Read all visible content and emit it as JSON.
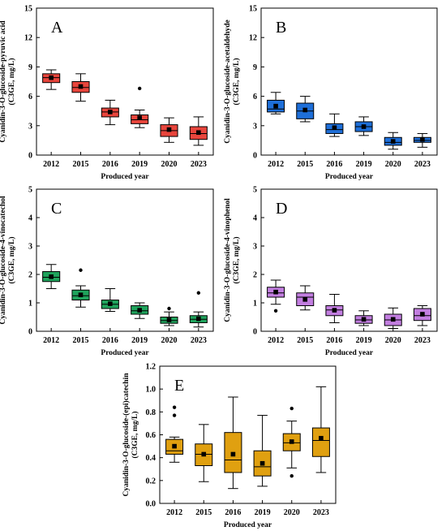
{
  "chart_data": [
    {
      "panel": "A",
      "type": "box",
      "ylabel": "Cyanidin-3-O-glucoside-pyruvic acid",
      "ylabel2": "(C3GE, mg/L)",
      "xlabel": "Produced year",
      "ylim": [
        0,
        15
      ],
      "yticks": [
        "0",
        "3",
        "6",
        "9",
        "12",
        "15"
      ],
      "ytick_values": [
        0,
        3,
        6,
        9,
        12,
        15
      ],
      "color": "#e8453c",
      "categories": [
        "2012",
        "2015",
        "2016",
        "2019",
        "2020",
        "2023"
      ],
      "boxes": [
        {
          "min": 6.7,
          "q1": 7.4,
          "median": 7.9,
          "q3": 8.3,
          "max": 8.7,
          "mean": 7.9,
          "outliers": []
        },
        {
          "min": 5.5,
          "q1": 6.4,
          "median": 6.9,
          "q3": 7.5,
          "max": 8.3,
          "mean": 7.0,
          "outliers": []
        },
        {
          "min": 3.1,
          "q1": 3.9,
          "median": 4.4,
          "q3": 4.8,
          "max": 5.6,
          "mean": 4.4,
          "outliers": []
        },
        {
          "min": 2.8,
          "q1": 3.2,
          "median": 3.6,
          "q3": 4.1,
          "max": 4.6,
          "mean": 3.8,
          "outliers": [
            6.8
          ]
        },
        {
          "min": 1.3,
          "q1": 1.9,
          "median": 2.5,
          "q3": 3.1,
          "max": 3.8,
          "mean": 2.6,
          "outliers": []
        },
        {
          "min": 1.0,
          "q1": 1.6,
          "median": 2.2,
          "q3": 2.9,
          "max": 3.9,
          "mean": 2.3,
          "outliers": []
        }
      ]
    },
    {
      "panel": "B",
      "type": "box",
      "ylabel": "Cyanidin-3-O-glucoside-acetaldehyde",
      "ylabel2": "(C3GE, mg/L)",
      "xlabel": "Produced year",
      "ylim": [
        0,
        15
      ],
      "yticks": [
        "0",
        "3",
        "6",
        "9",
        "12",
        "15"
      ],
      "ytick_values": [
        0,
        3,
        6,
        9,
        12,
        15
      ],
      "color": "#1e6fd9",
      "categories": [
        "2012",
        "2015",
        "2016",
        "2019",
        "2020",
        "2023"
      ],
      "boxes": [
        {
          "min": 4.2,
          "q1": 4.4,
          "median": 4.7,
          "q3": 5.6,
          "max": 6.4,
          "mean": 5.0,
          "outliers": []
        },
        {
          "min": 3.4,
          "q1": 3.7,
          "median": 4.5,
          "q3": 5.3,
          "max": 6.0,
          "mean": 4.6,
          "outliers": []
        },
        {
          "min": 1.9,
          "q1": 2.2,
          "median": 2.6,
          "q3": 3.2,
          "max": 4.2,
          "mean": 2.8,
          "outliers": []
        },
        {
          "min": 2.0,
          "q1": 2.4,
          "median": 2.9,
          "q3": 3.4,
          "max": 3.9,
          "mean": 2.9,
          "outliers": []
        },
        {
          "min": 0.6,
          "q1": 1.0,
          "median": 1.3,
          "q3": 1.8,
          "max": 2.3,
          "mean": 1.4,
          "outliers": []
        },
        {
          "min": 0.8,
          "q1": 1.3,
          "median": 1.5,
          "q3": 1.8,
          "max": 2.2,
          "mean": 1.6,
          "outliers": []
        }
      ]
    },
    {
      "panel": "C",
      "type": "box",
      "ylabel": "Cyanidin-3-O-glucoside-4-vinocatechol",
      "ylabel2": "(C3GE, mg/L)",
      "xlabel": "Produced year",
      "ylim": [
        0,
        5
      ],
      "yticks": [
        "0",
        "1",
        "2",
        "3",
        "4",
        "5"
      ],
      "ytick_values": [
        0,
        1,
        2,
        3,
        4,
        5
      ],
      "color": "#1fa35c",
      "categories": [
        "2012",
        "2015",
        "2016",
        "2019",
        "2020",
        "2023"
      ],
      "boxes": [
        {
          "min": 1.5,
          "q1": 1.75,
          "median": 1.9,
          "q3": 2.1,
          "max": 2.35,
          "mean": 1.92,
          "outliers": []
        },
        {
          "min": 0.85,
          "q1": 1.1,
          "median": 1.25,
          "q3": 1.45,
          "max": 1.6,
          "mean": 1.28,
          "outliers": [
            2.15
          ]
        },
        {
          "min": 0.7,
          "q1": 0.8,
          "median": 0.95,
          "q3": 1.1,
          "max": 1.5,
          "mean": 0.97,
          "outliers": []
        },
        {
          "min": 0.45,
          "q1": 0.6,
          "median": 0.72,
          "q3": 0.9,
          "max": 1.0,
          "mean": 0.74,
          "outliers": []
        },
        {
          "min": 0.2,
          "q1": 0.28,
          "median": 0.38,
          "q3": 0.5,
          "max": 0.68,
          "mean": 0.4,
          "outliers": [
            0.8
          ]
        },
        {
          "min": 0.15,
          "q1": 0.3,
          "median": 0.42,
          "q3": 0.55,
          "max": 0.68,
          "mean": 0.44,
          "outliers": [
            1.35
          ]
        }
      ]
    },
    {
      "panel": "D",
      "type": "box",
      "ylabel": "Cyanidin-3-O-glucoside-4-vinophenol",
      "ylabel2": "(C3GE, mg/L)",
      "xlabel": "Produced year",
      "ylim": [
        0,
        5
      ],
      "yticks": [
        "0",
        "1",
        "2",
        "3",
        "4",
        "5"
      ],
      "ytick_values": [
        0,
        1,
        2,
        3,
        4,
        5
      ],
      "color": "#c27ee0",
      "categories": [
        "2012",
        "2015",
        "2016",
        "2019",
        "2020",
        "2023"
      ],
      "boxes": [
        {
          "min": 0.95,
          "q1": 1.2,
          "median": 1.35,
          "q3": 1.55,
          "max": 1.8,
          "mean": 1.38,
          "outliers": [
            0.72
          ]
        },
        {
          "min": 0.75,
          "q1": 0.9,
          "median": 1.2,
          "q3": 1.35,
          "max": 1.6,
          "mean": 1.12,
          "outliers": []
        },
        {
          "min": 0.3,
          "q1": 0.55,
          "median": 0.75,
          "q3": 0.9,
          "max": 1.3,
          "mean": 0.74,
          "outliers": []
        },
        {
          "min": 0.2,
          "q1": 0.28,
          "median": 0.4,
          "q3": 0.55,
          "max": 0.72,
          "mean": 0.42,
          "outliers": []
        },
        {
          "min": 0.1,
          "q1": 0.2,
          "median": 0.4,
          "q3": 0.6,
          "max": 0.82,
          "mean": 0.42,
          "outliers": []
        },
        {
          "min": 0.2,
          "q1": 0.38,
          "median": 0.55,
          "q3": 0.8,
          "max": 0.9,
          "mean": 0.6,
          "outliers": []
        }
      ]
    },
    {
      "panel": "E",
      "type": "box",
      "ylabel": "Cyanidin-3-O-glucoside-(epi)catechin",
      "ylabel2": "(C3GE, mg/L)",
      "xlabel": "Produced year",
      "ylim": [
        0,
        1.2
      ],
      "yticks": [
        "0.0",
        "0.2",
        "0.4",
        "0.6",
        "0.8",
        "1.0",
        "1.2"
      ],
      "ytick_values": [
        0,
        0.2,
        0.4,
        0.6,
        0.8,
        1.0,
        1.2
      ],
      "color": "#e0a010",
      "categories": [
        "2012",
        "2015",
        "2016",
        "2019",
        "2020",
        "2023"
      ],
      "boxes": [
        {
          "min": 0.36,
          "q1": 0.43,
          "median": 0.46,
          "q3": 0.56,
          "max": 0.58,
          "mean": 0.5,
          "outliers": [
            0.77,
            0.84
          ]
        },
        {
          "min": 0.19,
          "q1": 0.33,
          "median": 0.43,
          "q3": 0.52,
          "max": 0.69,
          "mean": 0.43,
          "outliers": []
        },
        {
          "min": 0.13,
          "q1": 0.27,
          "median": 0.38,
          "q3": 0.62,
          "max": 0.93,
          "mean": 0.43,
          "outliers": []
        },
        {
          "min": 0.15,
          "q1": 0.24,
          "median": 0.32,
          "q3": 0.46,
          "max": 0.77,
          "mean": 0.35,
          "outliers": []
        },
        {
          "min": 0.31,
          "q1": 0.46,
          "median": 0.53,
          "q3": 0.61,
          "max": 0.72,
          "mean": 0.54,
          "outliers": [
            0.83,
            0.24
          ]
        },
        {
          "min": 0.27,
          "q1": 0.41,
          "median": 0.55,
          "q3": 0.66,
          "max": 1.02,
          "mean": 0.57,
          "outliers": []
        }
      ]
    }
  ]
}
